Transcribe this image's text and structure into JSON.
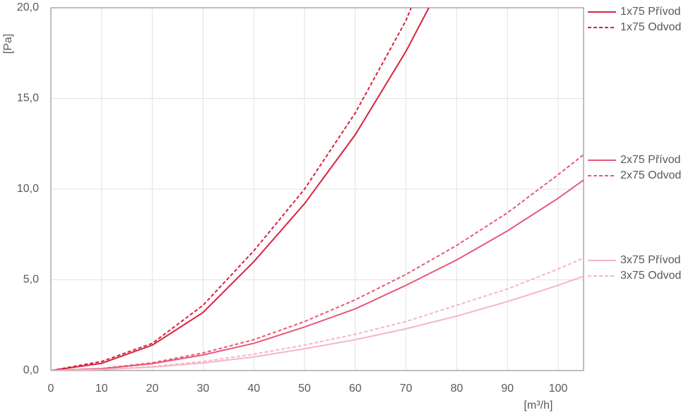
{
  "chart_data": {
    "type": "line",
    "y_label": "[Pa]",
    "x_label": "[m³/h]",
    "xlim": [
      0,
      105
    ],
    "xticks": [
      0,
      10,
      20,
      30,
      40,
      50,
      60,
      70,
      80,
      90,
      100
    ],
    "ylim": [
      0,
      20
    ],
    "yticks": [
      {
        "value": 0,
        "label": "0,0"
      },
      {
        "value": 5,
        "label": "5,0"
      },
      {
        "value": 10,
        "label": "10,0"
      },
      {
        "value": 15,
        "label": "15,0"
      },
      {
        "value": 20,
        "label": "20,0"
      }
    ],
    "grid": true,
    "legend": "right",
    "series": [
      {
        "name": "1x75 Přívod",
        "color": "#d9213f",
        "dashed": false,
        "x": [
          0,
          10,
          20,
          30,
          40,
          50,
          60,
          70,
          74.5
        ],
        "values": [
          0,
          0.4,
          1.4,
          3.2,
          6.0,
          9.2,
          13.0,
          17.6,
          20
        ]
      },
      {
        "name": "1x75 Odvod",
        "color": "#d9213f",
        "dashed": true,
        "x": [
          0,
          10,
          20,
          30,
          40,
          50,
          60,
          70,
          71
        ],
        "values": [
          0,
          0.5,
          1.5,
          3.6,
          6.6,
          10.0,
          14.2,
          19.3,
          20
        ]
      },
      {
        "name": "2x75 Přívod",
        "color": "#e8587a",
        "dashed": false,
        "x": [
          0,
          10,
          20,
          30,
          40,
          50,
          60,
          70,
          80,
          90,
          100,
          105
        ],
        "values": [
          0,
          0.1,
          0.38,
          0.86,
          1.5,
          2.4,
          3.4,
          4.7,
          6.1,
          7.7,
          9.5,
          10.5
        ]
      },
      {
        "name": "2x75 Odvod",
        "color": "#e8587a",
        "dashed": true,
        "x": [
          0,
          10,
          20,
          30,
          40,
          50,
          60,
          70,
          80,
          90,
          100,
          105
        ],
        "values": [
          0,
          0.11,
          0.43,
          0.97,
          1.7,
          2.7,
          3.9,
          5.3,
          6.9,
          8.7,
          10.8,
          11.9
        ]
      },
      {
        "name": "3x75 Přívod",
        "color": "#f4b6c6",
        "dashed": false,
        "x": [
          0,
          10,
          20,
          30,
          40,
          50,
          60,
          70,
          80,
          90,
          100,
          105
        ],
        "values": [
          0,
          0.05,
          0.19,
          0.42,
          0.75,
          1.2,
          1.7,
          2.3,
          3.0,
          3.8,
          4.7,
          5.2
        ]
      },
      {
        "name": "3x75 Odvod",
        "color": "#f4b6c6",
        "dashed": true,
        "x": [
          0,
          10,
          20,
          30,
          40,
          50,
          60,
          70,
          80,
          90,
          100,
          105
        ],
        "values": [
          0,
          0.06,
          0.22,
          0.5,
          0.9,
          1.4,
          2.0,
          2.7,
          3.6,
          4.5,
          5.6,
          6.2
        ]
      }
    ]
  }
}
